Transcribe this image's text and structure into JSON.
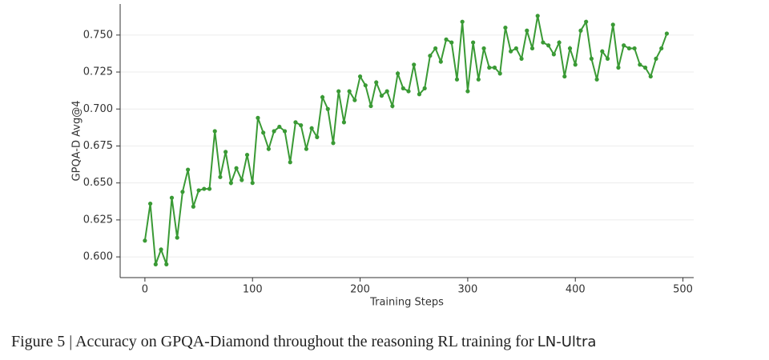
{
  "chart_data": {
    "type": "line",
    "xlabel": "Training Steps",
    "ylabel": "GPQA-D Avg@4",
    "x": [
      0,
      5,
      10,
      15,
      20,
      25,
      30,
      35,
      40,
      45,
      50,
      55,
      60,
      65,
      70,
      75,
      80,
      85,
      90,
      95,
      100,
      105,
      110,
      115,
      120,
      125,
      130,
      135,
      140,
      145,
      150,
      155,
      160,
      165,
      170,
      175,
      180,
      185,
      190,
      195,
      200,
      205,
      210,
      215,
      220,
      225,
      230,
      235,
      240,
      245,
      250,
      255,
      260,
      265,
      270,
      275,
      280,
      285,
      290,
      295,
      300,
      305,
      310,
      315,
      320,
      325,
      330,
      335,
      340,
      345,
      350,
      355,
      360,
      365,
      370,
      375,
      380,
      385,
      390,
      395,
      400,
      405,
      410,
      415,
      420,
      425,
      430,
      435,
      440,
      445,
      450,
      455,
      460,
      465,
      470,
      475,
      480,
      485
    ],
    "series": [
      {
        "name": "GPQA-D Avg@4",
        "color": "#3a9a35",
        "values": [
          0.611,
          0.636,
          0.595,
          0.605,
          0.595,
          0.64,
          0.613,
          0.644,
          0.659,
          0.634,
          0.645,
          0.646,
          0.646,
          0.685,
          0.654,
          0.671,
          0.65,
          0.66,
          0.652,
          0.669,
          0.65,
          0.694,
          0.684,
          0.673,
          0.685,
          0.688,
          0.685,
          0.664,
          0.691,
          0.689,
          0.673,
          0.687,
          0.681,
          0.708,
          0.7,
          0.677,
          0.712,
          0.691,
          0.712,
          0.706,
          0.722,
          0.716,
          0.702,
          0.718,
          0.709,
          0.712,
          0.702,
          0.724,
          0.714,
          0.712,
          0.73,
          0.71,
          0.714,
          0.736,
          0.741,
          0.732,
          0.747,
          0.745,
          0.72,
          0.759,
          0.712,
          0.745,
          0.72,
          0.741,
          0.728,
          0.728,
          0.724,
          0.755,
          0.739,
          0.741,
          0.734,
          0.753,
          0.741,
          0.763,
          0.745,
          0.743,
          0.737,
          0.745,
          0.722,
          0.741,
          0.73,
          0.753,
          0.759,
          0.734,
          0.72,
          0.739,
          0.734,
          0.757,
          0.728,
          0.743,
          0.741,
          0.741,
          0.73,
          0.728,
          0.722,
          0.734,
          0.741,
          0.751
        ]
      }
    ],
    "xlim": [
      -23,
      510
    ],
    "ylim": [
      0.586,
      0.771
    ],
    "xticks": [
      0,
      100,
      200,
      300,
      400,
      500
    ],
    "yticks": [
      {
        "value": 0.6,
        "label": "0.600"
      },
      0.625,
      {
        "value": 0.65,
        "label": "0.650"
      },
      0.675,
      {
        "value": 0.7,
        "label": "0.700"
      },
      0.725,
      {
        "value": 0.75,
        "label": "0.750"
      }
    ],
    "grid": true
  },
  "caption": {
    "text": "Figure 5 | Accuracy on GPQA-Diamond throughout the reasoning RL training for",
    "model": "LN-Ultra"
  }
}
